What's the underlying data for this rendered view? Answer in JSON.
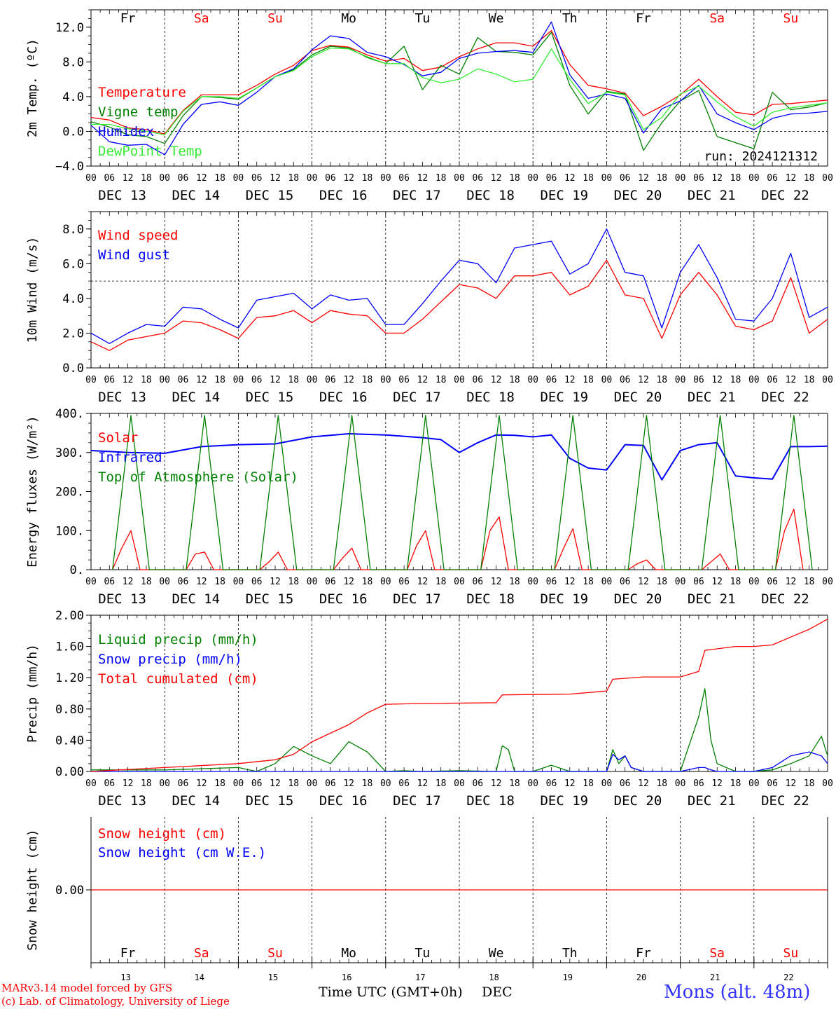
{
  "days": [
    "Fr",
    "Sa",
    "Su",
    "Mo",
    "Tu",
    "We",
    "Th",
    "Fr",
    "Sa",
    "Su"
  ],
  "weekend_color": "#ff0000",
  "weekday_color": "#000000",
  "date_labels": [
    "DEC 13",
    "DEC 14",
    "DEC 15",
    "DEC 16",
    "DEC 17",
    "DEC 18",
    "DEC 19",
    "DEC 20",
    "DEC 21",
    "DEC 22"
  ],
  "hour_ticks": [
    "00",
    "06",
    "12",
    "18"
  ],
  "last_hour_tick": "00",
  "bottom_day_numbers": [
    "13",
    "14",
    "15",
    "16",
    "17",
    "18",
    "19",
    "20",
    "21",
    "22"
  ],
  "footer": {
    "model_line": "MARv3.14 model forced by GFS",
    "lab_line": "(c) Lab. of Climatology, University of Liege",
    "xlabel": "Time UTC (GMT+0h)",
    "month": "DEC",
    "station": "Mons (alt. 48m)"
  },
  "colors": {
    "red": "#ff0000",
    "blue": "#0000ff",
    "darkgreen": "#008000",
    "lightgreen": "#33ee33"
  },
  "chart_data": [
    {
      "id": "temp",
      "type": "line",
      "ylabel": "2m Temp. (ºC)",
      "ylim": [
        -4,
        14
      ],
      "yticks": [
        "12.0",
        "8.0",
        "4.0",
        "0.0",
        "−4.0"
      ],
      "ytick_values": [
        12,
        8,
        4,
        0,
        -4
      ],
      "dashed_h": 0,
      "annotation": "run: 2024121312",
      "x_unit": "hours from 2024-12-13 00 UTC",
      "series": [
        {
          "name": "Temperature",
          "color": "red",
          "x": [
            0,
            6,
            12,
            18,
            24,
            30,
            36,
            42,
            48,
            54,
            60,
            66,
            72,
            78,
            84,
            90,
            96,
            102,
            108,
            114,
            120,
            126,
            132,
            138,
            144,
            150,
            156,
            162,
            168,
            174,
            180,
            186,
            192,
            198,
            204,
            210,
            216,
            222,
            228,
            234,
            240
          ],
          "y": [
            1.6,
            1.3,
            0.4,
            0.2,
            -0.3,
            2.4,
            4.2,
            4.2,
            4.2,
            5.3,
            6.6,
            7.6,
            9.3,
            9.9,
            9.7,
            8.8,
            8.1,
            8.4,
            7.0,
            7.4,
            8.6,
            9.5,
            10.2,
            10.2,
            9.8,
            11.6,
            7.7,
            5.3,
            4.9,
            4.4,
            1.8,
            2.9,
            4.2,
            6.0,
            4.0,
            2.2,
            1.9,
            3.1,
            3.2,
            3.4,
            3.6
          ]
        },
        {
          "name": "Vigne temp",
          "color": "darkgreen",
          "x": [
            0,
            6,
            12,
            18,
            24,
            30,
            36,
            42,
            48,
            54,
            60,
            66,
            72,
            78,
            84,
            90,
            96,
            102,
            108,
            114,
            120,
            126,
            132,
            138,
            144,
            150,
            156,
            162,
            168,
            174,
            180,
            186,
            192,
            198,
            204,
            210,
            216,
            222,
            228,
            234,
            240
          ],
          "y": [
            1.1,
            0.5,
            -0.4,
            -0.6,
            -1.4,
            1.8,
            4.0,
            3.9,
            3.7,
            5.0,
            6.3,
            7.1,
            8.8,
            9.8,
            9.6,
            8.5,
            7.8,
            9.8,
            4.8,
            7.6,
            6.6,
            10.8,
            9.2,
            9.1,
            8.8,
            11.4,
            5.3,
            2.0,
            4.6,
            4.3,
            -2.2,
            1.0,
            3.5,
            4.7,
            -0.6,
            -1.3,
            -2.0,
            4.5,
            2.5,
            2.8,
            3.3
          ]
        },
        {
          "name": "Humidex",
          "color": "blue",
          "x": [
            0,
            6,
            12,
            18,
            24,
            30,
            36,
            42,
            48,
            54,
            60,
            66,
            72,
            78,
            84,
            90,
            96,
            102,
            108,
            114,
            120,
            126,
            132,
            138,
            144,
            150,
            156,
            162,
            168,
            174,
            180,
            186,
            192,
            198,
            204,
            210,
            216,
            222,
            228,
            234,
            240
          ],
          "y": [
            0.7,
            -1.2,
            -1.6,
            -1.5,
            -2.7,
            0.8,
            3.1,
            3.4,
            3.0,
            4.5,
            6.3,
            7.2,
            9.4,
            11.0,
            10.7,
            9.1,
            8.6,
            7.7,
            6.4,
            6.8,
            8.4,
            9.0,
            9.2,
            9.3,
            9.1,
            12.6,
            6.5,
            3.8,
            4.3,
            3.8,
            -0.2,
            2.6,
            3.5,
            5.3,
            2.0,
            1.0,
            0.2,
            1.5,
            2.0,
            2.1,
            2.3
          ]
        },
        {
          "name": "DewPoint Temp",
          "color": "lightgreen",
          "x": [
            0,
            6,
            12,
            18,
            24,
            30,
            36,
            42,
            48,
            54,
            60,
            66,
            72,
            78,
            84,
            90,
            96,
            102,
            108,
            114,
            120,
            126,
            132,
            138,
            144,
            150,
            156,
            162,
            168,
            174,
            180,
            186,
            192,
            198,
            204,
            210,
            216,
            222,
            228,
            234,
            240
          ],
          "y": [
            0.8,
            0.8,
            0.3,
            0.0,
            -0.4,
            2.3,
            4.0,
            4.0,
            3.8,
            5.0,
            6.3,
            7.0,
            8.6,
            9.6,
            9.5,
            8.6,
            7.8,
            7.8,
            6.2,
            5.6,
            6.0,
            7.2,
            6.6,
            5.7,
            6.0,
            9.5,
            6.0,
            3.2,
            4.5,
            4.2,
            0.2,
            1.6,
            4.3,
            5.2,
            3.4,
            1.7,
            0.6,
            2.2,
            2.7,
            3.0,
            3.3
          ]
        }
      ]
    },
    {
      "id": "wind",
      "type": "line",
      "ylabel": "10m Wind (m/s)",
      "ylim": [
        0,
        9
      ],
      "yticks": [
        "8.0",
        "6.0",
        "4.0",
        "2.0",
        "0.0"
      ],
      "ytick_values": [
        8,
        6,
        4,
        2,
        0
      ],
      "dashed_h": 5,
      "x_unit": "hours from 2024-12-13 00 UTC",
      "series": [
        {
          "name": "Wind speed",
          "color": "red",
          "x": [
            0,
            6,
            12,
            18,
            24,
            30,
            36,
            42,
            48,
            54,
            60,
            66,
            72,
            78,
            84,
            90,
            96,
            102,
            108,
            114,
            120,
            126,
            132,
            138,
            144,
            150,
            156,
            162,
            168,
            174,
            180,
            186,
            192,
            198,
            204,
            210,
            216,
            222,
            228,
            234,
            240
          ],
          "y": [
            1.5,
            1.0,
            1.6,
            1.8,
            2.0,
            2.7,
            2.6,
            2.2,
            1.7,
            2.9,
            3.0,
            3.3,
            2.6,
            3.3,
            3.1,
            3.0,
            2.0,
            2.0,
            2.8,
            3.8,
            4.8,
            4.6,
            4.0,
            5.3,
            5.3,
            5.5,
            4.2,
            4.7,
            6.2,
            4.2,
            4.0,
            1.7,
            4.2,
            5.5,
            4.2,
            2.4,
            2.2,
            2.7,
            5.2,
            2.0,
            2.8
          ]
        },
        {
          "name": "Wind gust",
          "color": "blue",
          "x": [
            0,
            6,
            12,
            18,
            24,
            30,
            36,
            42,
            48,
            54,
            60,
            66,
            72,
            78,
            84,
            90,
            96,
            102,
            108,
            114,
            120,
            126,
            132,
            138,
            144,
            150,
            156,
            162,
            168,
            174,
            180,
            186,
            192,
            198,
            204,
            210,
            216,
            222,
            228,
            234,
            240
          ],
          "y": [
            2.0,
            1.4,
            2.0,
            2.5,
            2.4,
            3.5,
            3.4,
            2.8,
            2.3,
            3.9,
            4.1,
            4.3,
            3.4,
            4.2,
            3.9,
            4.0,
            2.5,
            2.5,
            3.7,
            5.0,
            6.2,
            6.0,
            4.9,
            6.9,
            7.1,
            7.3,
            5.4,
            6.0,
            8.0,
            5.5,
            5.3,
            2.3,
            5.5,
            7.1,
            5.2,
            2.8,
            2.7,
            4.0,
            6.6,
            2.9,
            3.5
          ]
        }
      ]
    },
    {
      "id": "energy",
      "type": "line",
      "ylabel": "Energy fluxes (W/m²)",
      "ylim": [
        0,
        400
      ],
      "yticks": [
        "400.",
        "300.",
        "200.",
        "100.",
        "0."
      ],
      "ytick_values": [
        400,
        300,
        200,
        100,
        0
      ],
      "x_unit": "hours from 2024-12-13 00 UTC",
      "series": [
        {
          "name": "Solar",
          "color": "red",
          "x": [
            7,
            10,
            13,
            16,
            31,
            34,
            37,
            40,
            55,
            58,
            61,
            64,
            79,
            82,
            85,
            88,
            103,
            106,
            109,
            112,
            127,
            130,
            133,
            136,
            151,
            154,
            157,
            160,
            175,
            178,
            181,
            184,
            199,
            202,
            205,
            208,
            223,
            226,
            229,
            232
          ],
          "y": [
            0,
            55,
            100,
            0,
            0,
            40,
            45,
            0,
            0,
            20,
            45,
            0,
            0,
            30,
            55,
            0,
            0,
            60,
            100,
            0,
            0,
            100,
            135,
            0,
            0,
            55,
            105,
            0,
            0,
            15,
            25,
            0,
            0,
            20,
            40,
            0,
            0,
            100,
            155,
            0
          ]
        },
        {
          "name": "Infrared",
          "color": "blue",
          "x": [
            0,
            12,
            24,
            36,
            48,
            60,
            72,
            84,
            96,
            108,
            114,
            120,
            126,
            132,
            138,
            144,
            150,
            156,
            162,
            168,
            174,
            180,
            186,
            192,
            198,
            204,
            210,
            216,
            222,
            228,
            234,
            240
          ],
          "y": [
            305,
            300,
            298,
            315,
            320,
            322,
            340,
            348,
            345,
            338,
            333,
            300,
            325,
            345,
            344,
            340,
            345,
            285,
            260,
            255,
            320,
            318,
            230,
            305,
            320,
            325,
            240,
            235,
            232,
            315,
            315,
            316
          ]
        },
        {
          "name": "Top of Atmosphere (Solar)",
          "color": "darkgreen",
          "x": [
            7,
            13,
            19,
            31,
            37,
            43,
            55,
            61,
            67,
            79,
            85,
            91,
            103,
            109,
            115,
            127,
            133,
            139,
            151,
            157,
            163,
            175,
            181,
            187,
            199,
            205,
            211,
            223,
            229,
            235
          ],
          "y": [
            0,
            395,
            0,
            0,
            395,
            0,
            0,
            395,
            0,
            0,
            395,
            0,
            0,
            395,
            0,
            0,
            395,
            0,
            0,
            395,
            0,
            0,
            395,
            0,
            0,
            395,
            0,
            0,
            395,
            0
          ]
        }
      ]
    },
    {
      "id": "precip",
      "type": "line",
      "ylabel": "Precip (mm/h)",
      "ylim": [
        0,
        2.0
      ],
      "yticks": [
        "2.00",
        "1.60",
        "1.20",
        "0.80",
        "0.40",
        "0.00"
      ],
      "ytick_values": [
        2.0,
        1.6,
        1.2,
        0.8,
        0.4,
        0.0
      ],
      "x_unit": "hours from 2024-12-13 00 UTC",
      "series": [
        {
          "name": "Liquid precip (mm/h)",
          "color": "darkgreen",
          "x": [
            0,
            24,
            48,
            54,
            60,
            66,
            72,
            78,
            84,
            90,
            96,
            102,
            108,
            120,
            132,
            134,
            136,
            138,
            144,
            150,
            156,
            168,
            170,
            172,
            174,
            176,
            180,
            192,
            198,
            200,
            202,
            204,
            210,
            216,
            222,
            228,
            234,
            238,
            240
          ],
          "y": [
            0.02,
            0.02,
            0.05,
            0.0,
            0.1,
            0.32,
            0.2,
            0.1,
            0.38,
            0.25,
            0.0,
            0.01,
            0.0,
            0.01,
            0.0,
            0.33,
            0.28,
            0.0,
            0.0,
            0.08,
            0.0,
            0.0,
            0.28,
            0.1,
            0.2,
            0.05,
            0.0,
            0.0,
            0.7,
            1.06,
            0.4,
            0.1,
            0.0,
            0.0,
            0.02,
            0.1,
            0.2,
            0.45,
            0.2
          ]
        },
        {
          "name": "Snow precip (mm/h)",
          "color": "blue",
          "x": [
            0,
            24,
            48,
            96,
            168,
            170,
            172,
            174,
            176,
            180,
            192,
            198,
            200,
            202,
            204,
            210,
            216,
            222,
            228,
            234,
            238,
            240
          ],
          "y": [
            0.0,
            0.0,
            0.0,
            0.0,
            0.0,
            0.22,
            0.15,
            0.2,
            0.05,
            0.0,
            0.0,
            0.05,
            0.05,
            0.02,
            0.0,
            0.0,
            0.0,
            0.05,
            0.2,
            0.25,
            0.2,
            0.1
          ]
        },
        {
          "name": "Total cumulated (cm)",
          "color": "red",
          "x": [
            0,
            24,
            48,
            60,
            66,
            72,
            84,
            90,
            96,
            108,
            132,
            134,
            156,
            168,
            170,
            180,
            192,
            198,
            200,
            210,
            216,
            222,
            228,
            234,
            240
          ],
          "y": [
            0.0,
            0.05,
            0.1,
            0.15,
            0.22,
            0.38,
            0.6,
            0.75,
            0.86,
            0.87,
            0.88,
            0.98,
            0.99,
            1.03,
            1.18,
            1.21,
            1.21,
            1.28,
            1.55,
            1.6,
            1.6,
            1.62,
            1.72,
            1.82,
            1.95
          ]
        }
      ]
    },
    {
      "id": "snow",
      "type": "line",
      "ylabel": "Snow height (cm)",
      "ylim": [
        -1,
        1
      ],
      "yticks": [
        "0.00"
      ],
      "ytick_values": [
        0
      ],
      "x_unit": "hours from 2024-12-13 00 UTC",
      "series": [
        {
          "name": "Snow height (cm)",
          "color": "red",
          "x": [
            0,
            240
          ],
          "y": [
            0,
            0
          ]
        },
        {
          "name": "Snow height (cm W.E.)",
          "color": "blue",
          "x": [
            0,
            240
          ],
          "y": [
            0,
            0
          ]
        }
      ]
    }
  ]
}
